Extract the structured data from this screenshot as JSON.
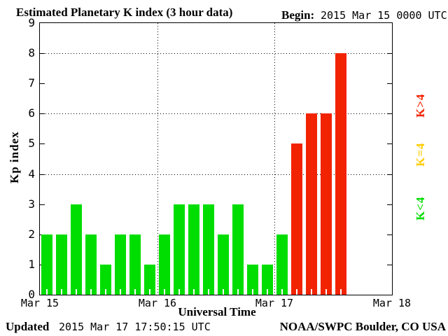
{
  "header": {
    "title": "Estimated Planetary K index (3 hour data)",
    "begin_label": "Begin:",
    "begin_value": "2015 Mar 15 0000 UTC"
  },
  "footer": {
    "updated_label": "Updated",
    "updated_value": "2015 Mar 17 17:50:15 UTC",
    "credit": "NOAA/SWPC Boulder, CO USA"
  },
  "chart_data": {
    "type": "bar",
    "title": "Estimated Planetary K index (3 hour data)",
    "xlabel": "Universal Time",
    "ylabel": "Kp index",
    "ylim": [
      0,
      9
    ],
    "yticks": [
      0,
      1,
      2,
      3,
      4,
      5,
      6,
      7,
      8,
      9
    ],
    "grid_y": [
      4,
      6,
      8
    ],
    "grid_x_day_boundaries": [
      1,
      2
    ],
    "x_day_labels": [
      "Mar 15",
      "Mar 16",
      "Mar 17",
      "Mar 18"
    ],
    "days": 3,
    "bars_per_day": 8,
    "hours_per_bar": 3,
    "series": [
      {
        "day": "Mar 15",
        "values": [
          2,
          2,
          3,
          2,
          1,
          2,
          2,
          1
        ]
      },
      {
        "day": "Mar 16",
        "values": [
          2,
          3,
          3,
          3,
          2,
          3,
          1,
          1
        ]
      },
      {
        "day": "Mar 17",
        "values": [
          2,
          5,
          6,
          6,
          8
        ]
      }
    ],
    "colors": {
      "low": "#00dd00",
      "mid": "#ffcc00",
      "high": "#f22300"
    },
    "color_rule": "low if K<4, mid if K=4, high if K>4",
    "legend": [
      {
        "label": "K>4",
        "color": "#f22300"
      },
      {
        "label": "K=4",
        "color": "#ffcc00"
      },
      {
        "label": "K<4",
        "color": "#00dd00"
      }
    ],
    "legend_position": "right-rotated"
  }
}
